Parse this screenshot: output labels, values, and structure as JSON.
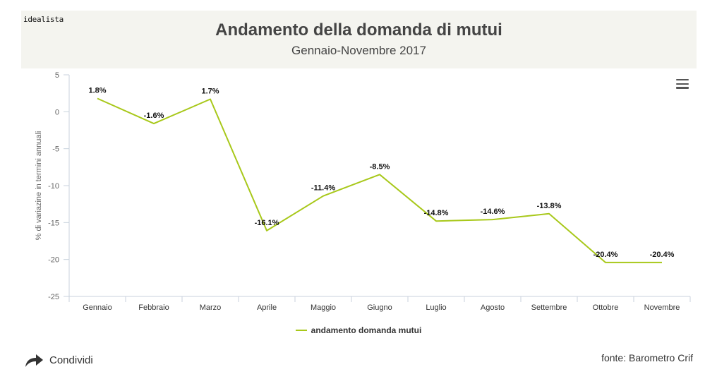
{
  "header": {
    "brand": "idealista"
  },
  "chart_data": {
    "type": "line",
    "title": "Andamento della domanda di mutui",
    "subtitle": "Gennaio-Novembre 2017",
    "xlabel": "",
    "ylabel": "% di variazine in termini annuali",
    "categories": [
      "Gennaio",
      "Febbraio",
      "Marzo",
      "Aprile",
      "Maggio",
      "Giugno",
      "Luglio",
      "Agosto",
      "Settembre",
      "Ottobre",
      "Novembre"
    ],
    "series": [
      {
        "name": "andamento domanda mutui",
        "values": [
          1.8,
          -1.6,
          1.7,
          -16.1,
          -11.4,
          -8.5,
          -14.8,
          -14.6,
          -13.8,
          -20.4,
          -20.4
        ],
        "labels": [
          "1.8%",
          "-1.6%",
          "1.7%",
          "-16.1%",
          "-11.4%",
          "-8.5%",
          "-14.8%",
          "-14.6%",
          "-13.8%",
          "-20.4%",
          "-20.4%"
        ]
      }
    ],
    "ylim": [
      -25,
      5
    ],
    "yticks": [
      5,
      0,
      -5,
      -10,
      -15,
      -20,
      -25
    ],
    "grid": false,
    "legend": "bottom-center",
    "colors": {
      "line": "#a8c81a",
      "axis": "#c8d2dc",
      "tick_label": "#666666"
    }
  },
  "footer": {
    "share_label": "Condividi",
    "share_icon": "share-arrow-icon",
    "source": "fonte: Barometro Crif"
  },
  "toolbar": {
    "menu_icon": "hamburger-menu-icon"
  }
}
